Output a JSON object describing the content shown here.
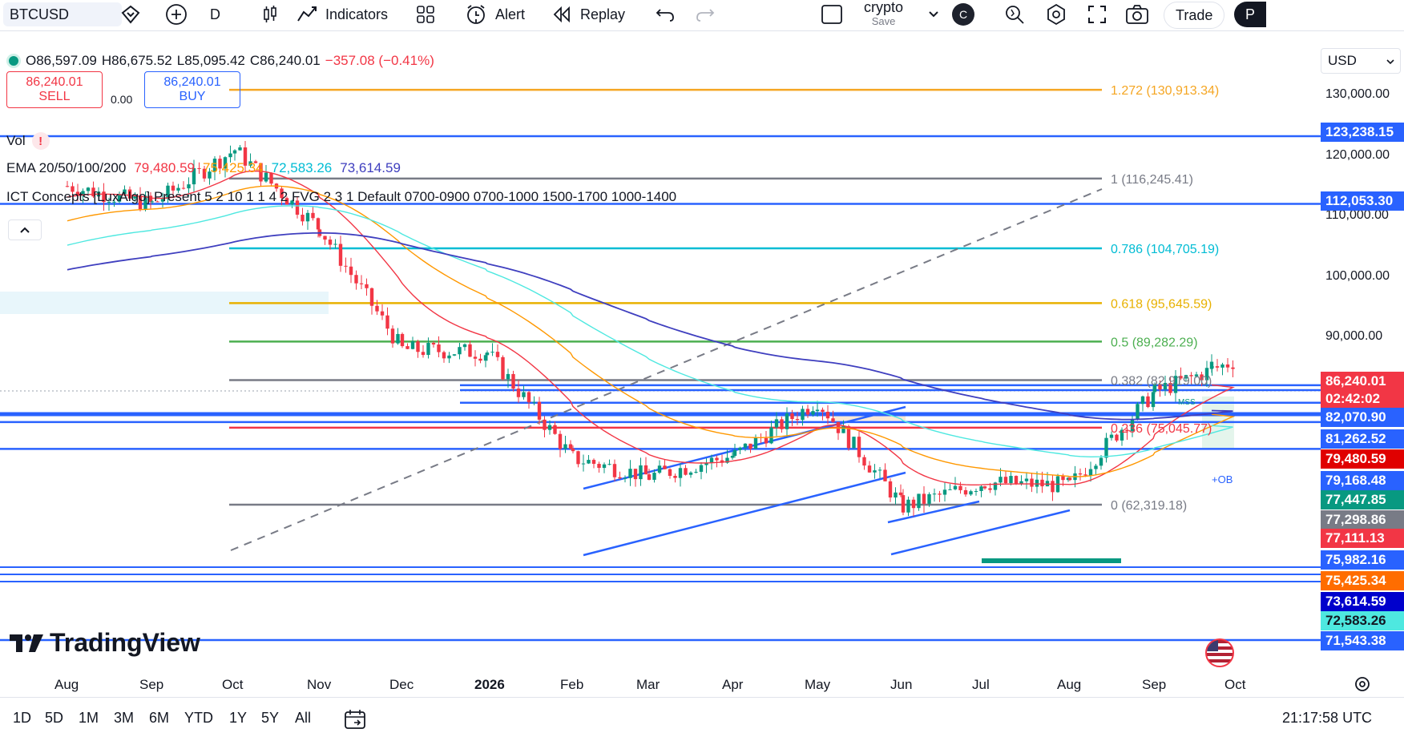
{
  "toolbar": {
    "symbol": "BTCUSD",
    "interval": "D",
    "indicators_label": "Indicators",
    "alert_label": "Alert",
    "replay_label": "Replay",
    "layout_name": "crypto",
    "layout_save": "Save",
    "avatar_letter": "C",
    "trade_label": "Trade",
    "profile_letter": "P"
  },
  "ohlc": {
    "open": "O86,597.09",
    "high": "H86,675.52",
    "low": "L85,095.42",
    "close": "C86,240.01",
    "change": "−357.08 (−0.41%)"
  },
  "trade_buttons": {
    "sell_price": "86,240.01",
    "sell_label": "SELL",
    "spread": "0.00",
    "buy_price": "86,240.01",
    "buy_label": "BUY"
  },
  "legends": {
    "vol": "Vol",
    "ema_title": "EMA 20/50/100/200",
    "ema_values": [
      "79,480.59",
      "75,425.34",
      "72,583.26",
      "73,614.59"
    ],
    "ict": "ICT Concepts [LuxAlgo] Present 5 2 10 1 1 4 2 FVG 2 3 1 Default 0700-0900 0700-1000 1500-1700 1000-1400"
  },
  "currency": "USD",
  "price_axis": {
    "ticks": [
      "130,000.00",
      "120,000.00",
      "110,000.00",
      "100,000.00",
      "90,000.00"
    ],
    "labels": [
      {
        "text": "123,238.15",
        "bg": "#2962ff",
        "fg": "#ffffff"
      },
      {
        "text": "112,053.30",
        "bg": "#2962ff",
        "fg": "#ffffff"
      },
      {
        "text": "86,240.01",
        "bg": "#f23645",
        "fg": "#ffffff"
      },
      {
        "text": "02:42:02",
        "bg": "#f23645",
        "fg": "#ffffff"
      },
      {
        "text": "82,070.90",
        "bg": "#2962ff",
        "fg": "#ffffff"
      },
      {
        "text": "81,262.52",
        "bg": "#2962ff",
        "fg": "#ffffff"
      },
      {
        "text": "79,480.59",
        "bg": "#e00000",
        "fg": "#ffffff"
      },
      {
        "text": "79,168.48",
        "bg": "#2962ff",
        "fg": "#ffffff"
      },
      {
        "text": "77,447.85",
        "bg": "#089981",
        "fg": "#ffffff"
      },
      {
        "text": "77,298.86",
        "bg": "#787b86",
        "fg": "#ffffff"
      },
      {
        "text": "77,111.13",
        "bg": "#f23645",
        "fg": "#ffffff"
      },
      {
        "text": "75,982.16",
        "bg": "#2962ff",
        "fg": "#ffffff"
      },
      {
        "text": "75,425.34",
        "bg": "#ff6d00",
        "fg": "#ffffff"
      },
      {
        "text": "73,614.59",
        "bg": "#0000cc",
        "fg": "#ffffff"
      },
      {
        "text": "72,583.26",
        "bg": "#4ee8e0",
        "fg": "#131722"
      },
      {
        "text": "71,543.38",
        "bg": "#2962ff",
        "fg": "#ffffff"
      }
    ]
  },
  "fib": [
    {
      "text": "1.272 (130,913.34)",
      "color": "#f5a623"
    },
    {
      "text": "1 (116,245.41)",
      "color": "#787b86"
    },
    {
      "text": "0.786 (104,705.19)",
      "color": "#00bcd4"
    },
    {
      "text": "0.618 (95,645.59)",
      "color": "#e8b100"
    },
    {
      "text": "0.5 (89,282.29)",
      "color": "#4caf50"
    },
    {
      "text": "0.382 (82,919.00)",
      "color": "#787b86"
    },
    {
      "text": "0.236 (75,045.77)",
      "color": "#f23645"
    },
    {
      "text": "0 (62,319.18)",
      "color": "#787b86"
    }
  ],
  "annotations": {
    "ob": "+OB",
    "mss": "MSS"
  },
  "time_axis": [
    "Aug",
    "Sep",
    "Oct",
    "Nov",
    "Dec",
    "2026",
    "Feb",
    "Mar",
    "Apr",
    "May",
    "Jun",
    "Jul",
    "Aug",
    "Sep",
    "Oct"
  ],
  "ranges": [
    "1D",
    "5D",
    "1M",
    "3M",
    "6M",
    "YTD",
    "1Y",
    "5Y",
    "All"
  ],
  "clock": "21:17:58 UTC",
  "watermark": "TradingView",
  "chart_data": {
    "type": "candlestick",
    "symbol": "BTCUSD",
    "interval": "D",
    "last_close": 86240.01,
    "y_ticks": [
      90000,
      100000,
      110000,
      120000,
      130000
    ],
    "x_ticks": [
      "Aug",
      "Sep",
      "Oct",
      "Nov",
      "Dec",
      "2026",
      "Feb",
      "Mar",
      "Apr",
      "May",
      "Jun",
      "Jul",
      "Aug",
      "Sep",
      "Oct"
    ],
    "price_trace": [
      [
        "Aug",
        115000
      ],
      [
        "Sep",
        112000
      ],
      [
        "Oct",
        121000
      ],
      [
        "Nov",
        108000
      ],
      [
        "Dec",
        88000
      ],
      [
        "2026",
        87500
      ],
      [
        "Feb",
        70000
      ],
      [
        "Mar",
        67000
      ],
      [
        "Apr",
        70500
      ],
      [
        "May",
        79500
      ],
      [
        "Jun",
        62000
      ],
      [
        "Jul",
        66000
      ],
      [
        "Aug",
        65500
      ],
      [
        "Sep",
        81000
      ],
      [
        "Oct",
        86240.01
      ]
    ],
    "ema": [
      {
        "name": "EMA 20",
        "color": "#f23645",
        "last": 79480.59
      },
      {
        "name": "EMA 50",
        "color": "#ff9800",
        "last": 75425.34
      },
      {
        "name": "EMA 100",
        "color": "#4ee8e0",
        "last": 72583.26
      },
      {
        "name": "EMA 200",
        "color": "#3f3fbf",
        "last": 73614.59
      }
    ],
    "horizontal_levels": [
      123238.15,
      112053.3,
      82070.9,
      81262.52,
      79168.48,
      77447.85,
      77298.86,
      77111.13,
      75982.16,
      71543.38
    ],
    "fib_levels": [
      {
        "ratio": 1.272,
        "price": 130913.34
      },
      {
        "ratio": 1,
        "price": 116245.41
      },
      {
        "ratio": 0.786,
        "price": 104705.19
      },
      {
        "ratio": 0.618,
        "price": 95645.59
      },
      {
        "ratio": 0.5,
        "price": 89282.29
      },
      {
        "ratio": 0.382,
        "price": 82919.0
      },
      {
        "ratio": 0.236,
        "price": 75045.77
      },
      {
        "ratio": 0,
        "price": 62319.18
      }
    ]
  }
}
